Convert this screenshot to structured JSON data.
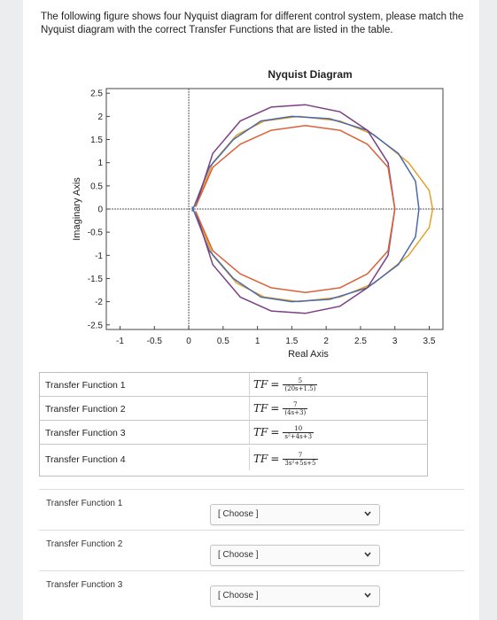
{
  "question": "The following figure shows four Nyquist diagram for different control system, please match the Nyquist diagram with the correct Transfer Functions that are listed in the table.",
  "chart_data": {
    "type": "line",
    "title": "Nyquist Diagram",
    "xlabel": "Real Axis",
    "ylabel": "Imaginary Axis",
    "xlim": [
      -1.2,
      3.7
    ],
    "ylim": [
      -2.6,
      2.6
    ],
    "x_ticks": [
      "-1",
      "-0.5",
      "0",
      "0.5",
      "1",
      "1.5",
      "2",
      "2.5",
      "3",
      "3.5"
    ],
    "y_ticks": [
      "2.5",
      "2",
      "1.5",
      "1",
      "0.5",
      "0",
      "-0.5",
      "-1",
      "-1.5",
      "-2",
      "-2.5"
    ],
    "grid": false,
    "series": [
      {
        "color": "#e6a02a",
        "x": [
          0.1,
          0.35,
          0.7,
          1.1,
          1.6,
          2.2,
          2.7,
          3.2,
          3.5,
          3.55
        ],
        "y": [
          0.05,
          1.0,
          1.6,
          1.9,
          2.0,
          1.9,
          1.6,
          1.0,
          0.4,
          0.0
        ]
      },
      {
        "color": "#4b6aa8",
        "x": [
          0.05,
          0.3,
          0.65,
          1.05,
          1.5,
          2.05,
          2.6,
          3.05,
          3.3,
          3.35
        ],
        "y": [
          0.05,
          -0.9,
          -1.5,
          -1.9,
          -2.0,
          -1.95,
          -1.7,
          -1.2,
          -0.6,
          0.0
        ]
      },
      {
        "color": "#7b3f83",
        "x": [
          0.1,
          0.35,
          0.75,
          1.2,
          1.7,
          2.2,
          2.6,
          2.9,
          3.0
        ],
        "y": [
          0.05,
          1.2,
          1.9,
          2.2,
          2.25,
          2.1,
          1.7,
          1.0,
          0.0
        ]
      },
      {
        "color": "#d9623a",
        "x": [
          0.1,
          0.35,
          0.75,
          1.2,
          1.7,
          2.2,
          2.6,
          2.9,
          3.0
        ],
        "y": [
          0.05,
          0.9,
          1.4,
          1.7,
          1.8,
          1.7,
          1.4,
          0.9,
          0.0
        ]
      }
    ]
  },
  "table": {
    "rows": [
      {
        "label": "Transfer Function 1",
        "lhs": "TF",
        "num": "5",
        "den": "(20s+1.5)"
      },
      {
        "label": "Transfer Function 2",
        "lhs": "TF",
        "num": "7",
        "den": "(4s+3)"
      },
      {
        "label": "Transfer Function 3",
        "lhs": "TF",
        "num": "10",
        "den": "s²+4s+3"
      },
      {
        "label": "Transfer Function 4",
        "lhs": "TF",
        "num": "7",
        "den": "3s²+5s+5"
      }
    ]
  },
  "matching": [
    {
      "label": "Transfer Function 1",
      "value": "[ Choose ]"
    },
    {
      "label": "Transfer Function 2",
      "value": "[ Choose ]"
    },
    {
      "label": "Transfer Function 3",
      "value": "[ Choose ]"
    }
  ]
}
